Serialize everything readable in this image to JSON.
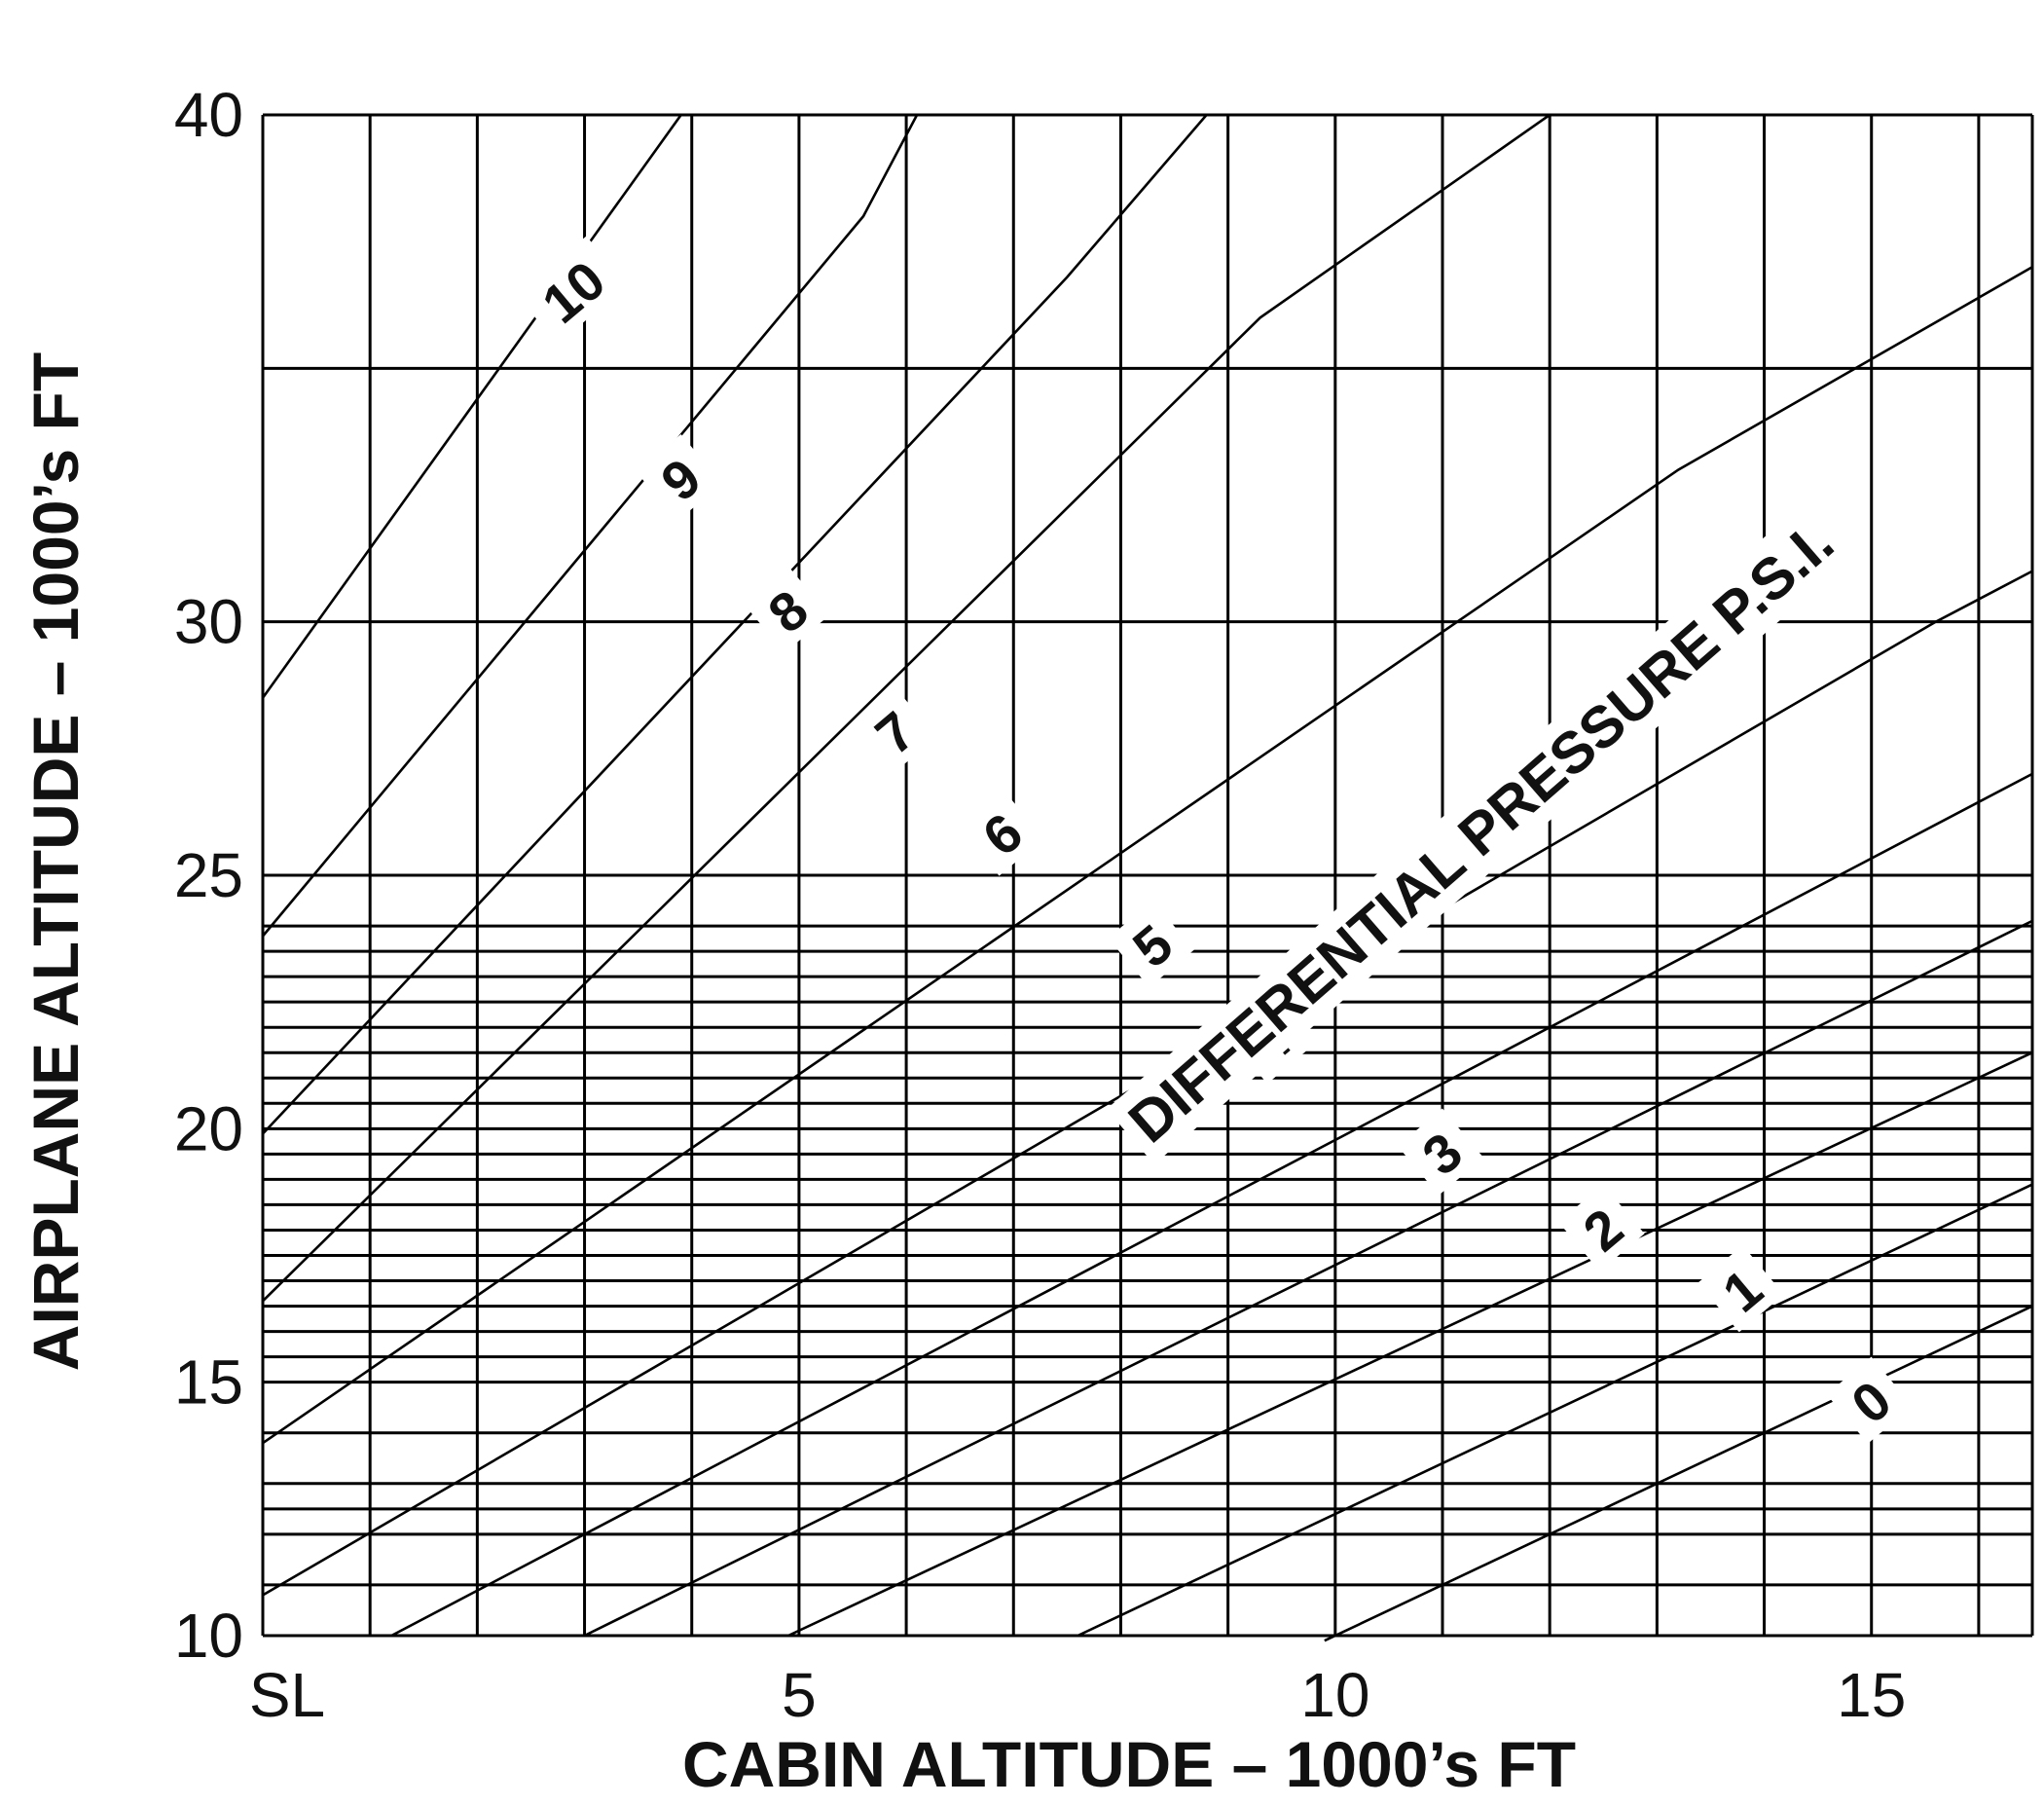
{
  "chart_data": {
    "type": "line",
    "xlabel": "CABIN ALTITUDE – 1000’s FT",
    "ylabel": "AIRPLANE ALTITUDE – 1000’s FT",
    "annotation": "DIFFERENTIAL PRESSURE  P.S.I.",
    "xlim": [
      0,
      16.5
    ],
    "ylim": [
      10,
      40
    ],
    "x_ticks": [
      {
        "value": 0,
        "label": "SL"
      },
      {
        "value": 5,
        "label": "5"
      },
      {
        "value": 10,
        "label": "10"
      },
      {
        "value": 15,
        "label": "15"
      }
    ],
    "y_ticks": [
      {
        "value": 10,
        "label": "10"
      },
      {
        "value": 15,
        "label": "15"
      },
      {
        "value": 20,
        "label": "20"
      },
      {
        "value": 25,
        "label": "25"
      },
      {
        "value": 30,
        "label": "30"
      },
      {
        "value": 40,
        "label": "40"
      }
    ],
    "x_gridlines": [
      0,
      1,
      2,
      3,
      4,
      5,
      6,
      7,
      8,
      9,
      10,
      11,
      12,
      13,
      14,
      15,
      16,
      16.5
    ],
    "y_gridlines": [
      10,
      11,
      12,
      12.5,
      13,
      14,
      15,
      15.5,
      16,
      16.5,
      17,
      17.5,
      18,
      18.5,
      19,
      19.5,
      20,
      20.5,
      21,
      21.5,
      22,
      22.5,
      23,
      23.5,
      24,
      25,
      30,
      35,
      40
    ],
    "series": [
      {
        "name": "0",
        "label_at": [
          15.0,
          14.6
        ],
        "points": [
          [
            9.9,
            9.9
          ],
          [
            16.5,
            16.5
          ]
        ]
      },
      {
        "name": "1",
        "label_at": [
          13.8,
          16.8
        ],
        "points": [
          [
            7.6,
            10.0
          ],
          [
            16.5,
            18.9
          ]
        ]
      },
      {
        "name": "2",
        "label_at": [
          12.5,
          18.0
        ],
        "points": [
          [
            4.9,
            10.0
          ],
          [
            16.5,
            21.5
          ]
        ]
      },
      {
        "name": "3",
        "label_at": [
          11.0,
          19.5
        ],
        "points": [
          [
            3.0,
            10.0
          ],
          [
            16.5,
            24.1
          ]
        ]
      },
      {
        "name": "4",
        "label_at": [
          9.4,
          21.7
        ],
        "points": [
          [
            1.2,
            10.0
          ],
          [
            16.5,
            27.0
          ]
        ]
      },
      {
        "name": "5",
        "label_at": [
          8.3,
          23.6
        ],
        "points": [
          [
            0.0,
            10.8
          ],
          [
            15.6,
            30.0
          ],
          [
            16.5,
            31.0
          ]
        ]
      },
      {
        "name": "6",
        "label_at": [
          6.9,
          25.8
        ],
        "points": [
          [
            0.0,
            13.8
          ],
          [
            13.2,
            33.0
          ],
          [
            16.5,
            37.0
          ]
        ]
      },
      {
        "name": "7",
        "label_at": [
          5.9,
          27.8
        ],
        "points": [
          [
            0.0,
            16.6
          ],
          [
            9.3,
            36.0
          ],
          [
            12.0,
            40.0
          ]
        ]
      },
      {
        "name": "8",
        "label_at": [
          4.9,
          30.2
        ],
        "points": [
          [
            0.0,
            19.9
          ],
          [
            7.5,
            36.8
          ],
          [
            8.8,
            40.0
          ]
        ]
      },
      {
        "name": "9",
        "label_at": [
          3.9,
          32.8
        ],
        "points": [
          [
            0.0,
            23.8
          ],
          [
            5.6,
            38.0
          ],
          [
            6.1,
            40.0
          ]
        ]
      },
      {
        "name": "10",
        "label_at": [
          2.9,
          36.5
        ],
        "points": [
          [
            0.0,
            28.5
          ],
          [
            3.9,
            40.0
          ]
        ]
      }
    ]
  }
}
